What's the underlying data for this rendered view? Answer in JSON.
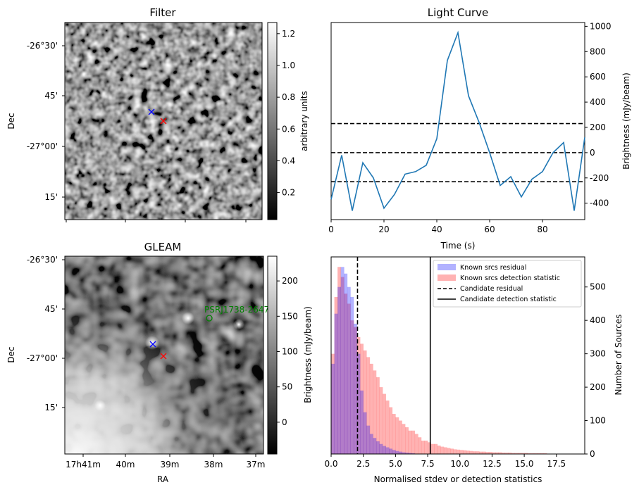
{
  "chart_data": [
    {
      "type": "heatmap",
      "title": "Filter",
      "xlabel": "",
      "ylabel": "Dec",
      "y_ticks": [
        "-26°30'",
        "45'",
        "-27°00'",
        "15'"
      ],
      "colorbar": {
        "label": "arbitrary units",
        "ticks": [
          "0.2",
          "0.4",
          "0.6",
          "0.8",
          "1.0",
          "1.2"
        ],
        "range": [
          0.03,
          1.27
        ]
      },
      "markers": [
        {
          "symbol": "x",
          "color": "#0000ff"
        },
        {
          "symbol": "x",
          "color": "#ff0000"
        }
      ]
    },
    {
      "type": "line",
      "title": "Light Curve",
      "xlabel": "Time (s)",
      "ylabel": "Brightness (mJy/beam)",
      "xlim": [
        0,
        96
      ],
      "ylim": [
        -530,
        1030
      ],
      "x_ticks": [
        0,
        20,
        40,
        60,
        80
      ],
      "y_ticks": [
        -400,
        -200,
        0,
        200,
        400,
        600,
        800,
        1000
      ],
      "x": [
        0,
        4,
        8,
        12,
        16,
        20,
        24,
        28,
        32,
        36,
        40,
        44,
        48,
        52,
        56,
        60,
        64,
        68,
        72,
        76,
        80,
        84,
        88,
        92,
        96
      ],
      "values": [
        -370,
        -20,
        -460,
        -80,
        -200,
        -440,
        -330,
        -170,
        -150,
        -100,
        110,
        730,
        950,
        450,
        240,
        0,
        -260,
        -190,
        -350,
        -210,
        -150,
        0,
        80,
        -460,
        120
      ],
      "hlines": [
        {
          "y": 230,
          "style": "dashed"
        },
        {
          "y": 0,
          "style": "dashed"
        },
        {
          "y": -230,
          "style": "dashed"
        }
      ]
    },
    {
      "type": "heatmap",
      "title": "GLEAM",
      "xlabel": "RA",
      "ylabel": "Dec",
      "x_ticks": [
        "17h41m",
        "40m",
        "39m",
        "38m",
        "37m"
      ],
      "y_ticks": [
        "-26°30'",
        "45'",
        "-27°00'",
        "15'"
      ],
      "colorbar": {
        "label": "Brightness (mJy/beam)",
        "ticks": [
          "0",
          "50",
          "100",
          "150",
          "200"
        ],
        "range": [
          -45,
          235
        ]
      },
      "annotation": "PSRJ1738-2647",
      "markers": [
        {
          "symbol": "x",
          "color": "#0000ff"
        },
        {
          "symbol": "x",
          "color": "#ff0000"
        },
        {
          "symbol": "o",
          "color": "#008000"
        }
      ]
    },
    {
      "type": "bar",
      "title": "",
      "xlabel": "Normalised stdev or detection statistics",
      "ylabel": "Number of Sources",
      "xlim": [
        0,
        19.7
      ],
      "ylim": [
        0,
        590
      ],
      "x_ticks": [
        "0.0",
        "2.5",
        "5.0",
        "7.5",
        "10.0",
        "12.5",
        "15.0",
        "17.5"
      ],
      "y_ticks": [
        0,
        100,
        200,
        300,
        400,
        500
      ],
      "bin_width": 0.25,
      "bin_start": 0,
      "legend_position": "top-right",
      "series": [
        {
          "name": "Known srcs residual",
          "color": "#0000ff",
          "alpha": 0.3,
          "values": [
            270,
            420,
            500,
            560,
            540,
            500,
            470,
            390,
            300,
            190,
            125,
            85,
            60,
            48,
            38,
            30,
            24,
            20,
            16,
            12,
            9,
            7,
            5,
            4,
            3,
            2,
            1,
            1
          ]
        },
        {
          "name": "Known srcs detection statistic",
          "color": "#ff0000",
          "alpha": 0.3,
          "values": [
            300,
            470,
            560,
            530,
            480,
            450,
            400,
            380,
            350,
            330,
            310,
            290,
            270,
            250,
            230,
            200,
            180,
            160,
            140,
            120,
            110,
            100,
            90,
            80,
            70,
            70,
            60,
            50,
            40,
            40,
            35,
            30,
            30,
            25,
            22,
            20,
            18,
            16,
            14,
            13,
            12,
            11,
            10,
            9,
            8,
            8,
            7,
            7,
            6,
            6,
            5,
            5,
            5,
            4,
            4,
            4,
            3,
            3,
            3,
            3,
            3,
            2,
            2,
            2,
            2,
            2,
            2,
            1,
            1,
            1,
            1,
            1,
            1,
            1
          ]
        }
      ],
      "vlines": [
        {
          "name": "Candidate residual",
          "x": 2.05,
          "style": "dashed"
        },
        {
          "name": "Candidate detection statistic",
          "x": 7.7,
          "style": "solid"
        }
      ]
    }
  ]
}
